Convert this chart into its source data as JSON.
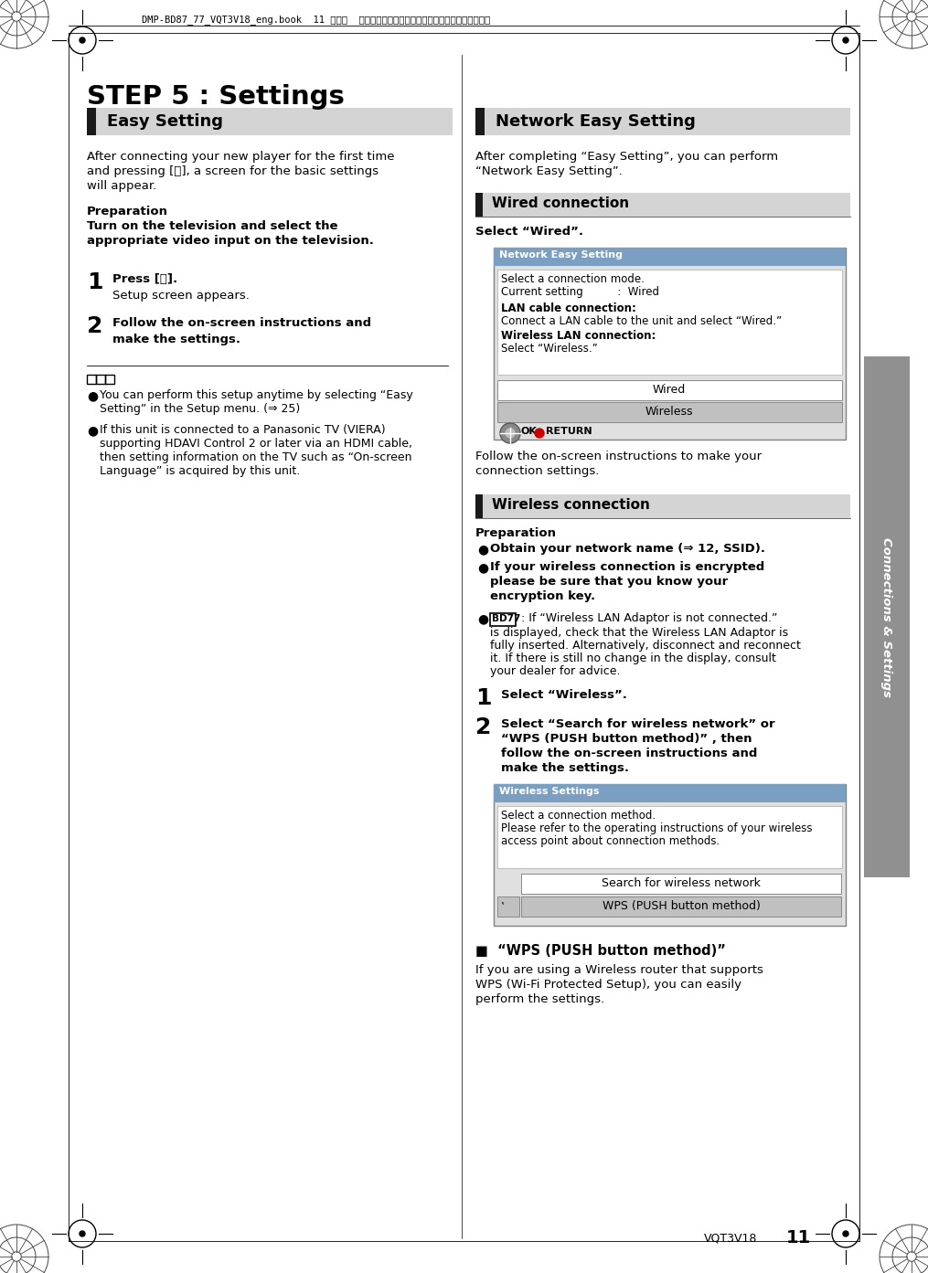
{
  "page_bg": "#ffffff",
  "header_text": "DMP-BD87_77_VQT3V18_eng.book  11 ページ  ２０１１年１０月２４日　月曜日　午後２時４５分",
  "main_title": "STEP 5 : Settings",
  "left_section_title": "Easy Setting",
  "left_body1_line1": "After connecting your new player for the first time",
  "left_body1_line2": "and pressing [ⓘ], a screen for the basic settings",
  "left_body1_line3": "will appear.",
  "left_prep_label": "Preparation",
  "left_prep_bold1": "Turn on the television and select the",
  "left_prep_bold2": "appropriate video input on the television.",
  "left_step1_num": "1",
  "left_step1_bold": "Press [ⓘ].",
  "left_step1_body": "Setup screen appears.",
  "left_step2_num": "2",
  "left_step2_bold1": "Follow the on-screen instructions and",
  "left_step2_bold2": "make the settings.",
  "left_note1_line1": "You can perform this setup anytime by selecting “Easy",
  "left_note1_line2": "Setting” in the Setup menu. (⇒ 25)",
  "left_note2_line1": "If this unit is connected to a Panasonic TV (VIERA)",
  "left_note2_line2": "supporting HDAVI Control 2 or later via an HDMI cable,",
  "left_note2_line3": "then setting information on the TV such as “On-screen",
  "left_note2_line4": "Language” is acquired by this unit.",
  "right_section_title": "Network Easy Setting",
  "right_intro_line1": "After completing “Easy Setting”, you can perform",
  "right_intro_line2": "“Network Easy Setting”.",
  "wired_title": "Wired connection",
  "wired_select": "Select “Wired”.",
  "screen1_title": "Network Easy Setting",
  "screen1_line1": "Select a connection mode.",
  "screen1_line2": "Current setting          :  Wired",
  "screen1_line3": "LAN cable connection:",
  "screen1_line4": "Connect a LAN cable to the unit and select “Wired.”",
  "screen1_line5": "Wireless LAN connection:",
  "screen1_line6": "Select “Wireless.”",
  "screen1_btn1": "Wired",
  "screen1_btn2": "Wireless",
  "screen1_ok": "OK",
  "screen1_return": "RETURN",
  "wired_follow1": "Follow the on-screen instructions to make your",
  "wired_follow2": "connection settings.",
  "wireless_title": "Wireless connection",
  "wireless_prep_label": "Preparation",
  "wireless_b1": "Obtain your network name (⇒ 12, SSID).",
  "wireless_b2a": "If your wireless connection is encrypted",
  "wireless_b2b": "please be sure that you know your",
  "wireless_b2c": "encryption key.",
  "wireless_b3a": " : If “Wireless LAN Adaptor is not connected.”",
  "wireless_b3b": "is displayed, check that the Wireless LAN Adaptor is",
  "wireless_b3c": "fully inserted. Alternatively, disconnect and reconnect",
  "wireless_b3d": "it. If there is still no change in the display, consult",
  "wireless_b3e": "your dealer for advice.",
  "wireless_step1_num": "1",
  "wireless_step1_bold": "Select “Wireless”.",
  "wireless_step2_num": "2",
  "wireless_step2_bold1": "Select “Search for wireless network” or",
  "wireless_step2_bold2": "“WPS (PUSH button method)” , then",
  "wireless_step2_bold3": "follow the on-screen instructions and",
  "wireless_step2_bold4": "make the settings.",
  "screen2_title": "Wireless Settings",
  "screen2_line1": "Select a connection method.",
  "screen2_line2": "Please refer to the operating instructions of your wireless",
  "screen2_line3": "access point about connection methods.",
  "screen2_btn1": "Search for wireless network",
  "screen2_btn2": "WPS (PUSH button method)",
  "wps_title": "■  “WPS (PUSH button method)”",
  "wps_body1": "If you are using a Wireless router that supports",
  "wps_body2": "WPS (Wi-Fi Protected Setup), you can easily",
  "wps_body3": "perform the settings.",
  "sidebar_text": "Connections & Settings",
  "footer_right1": "VQT3V18",
  "footer_right2": "11",
  "section_bg": "#d4d4d4",
  "section_bar": "#1a1a1a",
  "screen_title_bg": "#7a9fc0",
  "screen_body_bg": "#e0e0e0",
  "screen_btn_bg": "#c0c0c0",
  "screen_border": "#808080",
  "sidebar_bg": "#909090"
}
